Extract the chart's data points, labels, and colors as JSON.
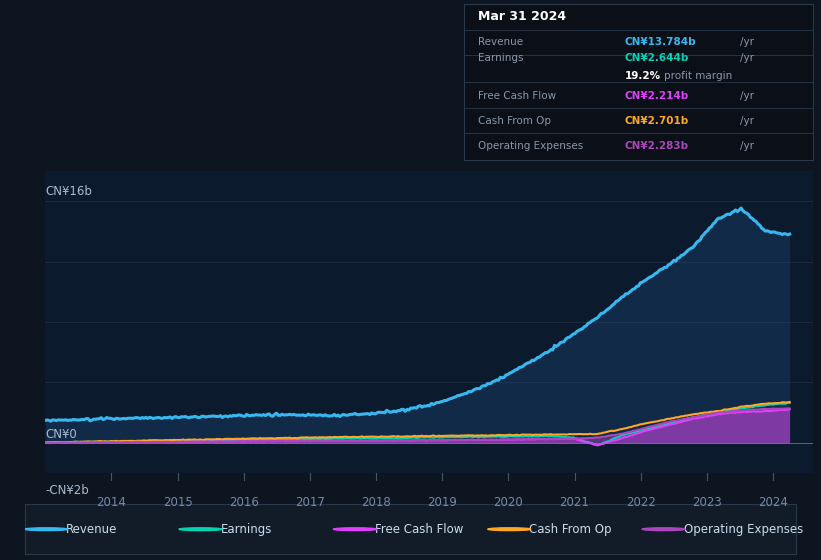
{
  "bg_color": "#0c1520",
  "plot_bg_color": "#0c1a2e",
  "y_label_top": "CN¥16b",
  "y_label_zero": "CN¥0",
  "y_label_neg": "-CN¥2b",
  "ylim": [
    -2,
    18
  ],
  "xlim": [
    2013.0,
    2024.6
  ],
  "info_box": {
    "date": "Mar 31 2024",
    "revenue_label": "Revenue",
    "revenue_value": "CN¥13.784b",
    "revenue_color": "#38b8f0",
    "earnings_label": "Earnings",
    "earnings_value": "CN¥2.644b",
    "earnings_color": "#00d4b4",
    "margin_pct": "19.2%",
    "margin_text": "profit margin",
    "fcf_label": "Free Cash Flow",
    "fcf_value": "CN¥2.214b",
    "fcf_color": "#e040fb",
    "cashop_label": "Cash From Op",
    "cashop_value": "CN¥2.701b",
    "cashop_color": "#ffa726",
    "opex_label": "Operating Expenses",
    "opex_value": "CN¥2.283b",
    "opex_color": "#ab47bc"
  },
  "legend": [
    {
      "label": "Revenue",
      "color": "#38b8f0"
    },
    {
      "label": "Earnings",
      "color": "#00d4b4"
    },
    {
      "label": "Free Cash Flow",
      "color": "#e040fb"
    },
    {
      "label": "Cash From Op",
      "color": "#ffa726"
    },
    {
      "label": "Operating Expenses",
      "color": "#ab47bc"
    }
  ],
  "rev_keys": [
    1.48,
    1.52,
    1.58,
    1.62,
    1.65,
    1.68,
    1.72,
    1.75,
    1.8,
    1.85,
    1.88,
    1.85,
    1.82,
    1.88,
    2.0,
    2.2,
    2.5,
    3.0,
    3.6,
    4.3,
    5.2,
    6.1,
    7.2,
    8.3,
    9.6,
    10.8,
    11.8,
    13.0,
    14.8,
    15.5,
    14.0,
    13.784
  ],
  "earn_keys": [
    0.04,
    0.06,
    0.08,
    0.1,
    0.12,
    0.14,
    0.16,
    0.18,
    0.2,
    0.22,
    0.24,
    0.26,
    0.28,
    0.3,
    0.32,
    0.34,
    0.36,
    0.38,
    0.4,
    0.42,
    0.44,
    0.46,
    0.35,
    -0.15,
    0.5,
    0.9,
    1.3,
    1.7,
    2.0,
    2.3,
    2.5,
    2.644
  ],
  "fcf_keys": [
    0.02,
    0.03,
    0.04,
    0.05,
    0.06,
    0.07,
    0.08,
    0.09,
    0.1,
    0.11,
    0.12,
    0.13,
    0.14,
    0.15,
    0.16,
    0.17,
    0.18,
    0.19,
    0.2,
    0.22,
    0.24,
    0.26,
    0.28,
    -0.15,
    0.3,
    0.8,
    1.2,
    1.6,
    1.9,
    2.05,
    2.1,
    2.214
  ],
  "cashop_keys": [
    0.04,
    0.06,
    0.09,
    0.12,
    0.15,
    0.18,
    0.21,
    0.24,
    0.27,
    0.3,
    0.33,
    0.36,
    0.38,
    0.4,
    0.42,
    0.44,
    0.46,
    0.48,
    0.5,
    0.52,
    0.54,
    0.56,
    0.58,
    0.6,
    0.9,
    1.3,
    1.6,
    1.9,
    2.1,
    2.4,
    2.6,
    2.701
  ],
  "opex_keys": [
    0.02,
    0.03,
    0.04,
    0.05,
    0.06,
    0.07,
    0.08,
    0.09,
    0.1,
    0.11,
    0.12,
    0.13,
    0.14,
    0.15,
    0.16,
    0.17,
    0.18,
    0.19,
    0.2,
    0.22,
    0.24,
    0.26,
    0.28,
    0.35,
    0.6,
    1.0,
    1.4,
    1.7,
    2.0,
    2.15,
    2.25,
    2.283
  ]
}
